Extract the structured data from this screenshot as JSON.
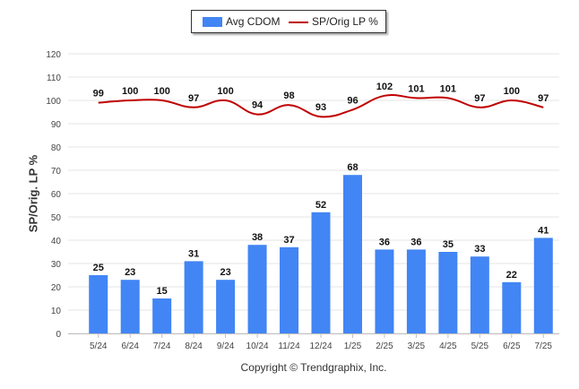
{
  "chart_data": {
    "type": "bar+line",
    "categories": [
      "5/24",
      "6/24",
      "7/24",
      "8/24",
      "9/24",
      "10/24",
      "11/24",
      "12/24",
      "1/25",
      "2/25",
      "3/25",
      "4/25",
      "5/25",
      "6/25",
      "7/25"
    ],
    "series": [
      {
        "name": "Avg CDOM",
        "type": "bar",
        "color": "#4285f4",
        "values": [
          25,
          23,
          15,
          31,
          23,
          38,
          37,
          52,
          68,
          36,
          36,
          35,
          33,
          22,
          41
        ]
      },
      {
        "name": "SP/Orig LP %",
        "type": "line",
        "color": "#c00000",
        "values": [
          99,
          100,
          100,
          97,
          100,
          94,
          98,
          93,
          96,
          102,
          101,
          101,
          97,
          100,
          97
        ]
      }
    ],
    "ylabel": "SP/Orig. LP %",
    "xlabel": "",
    "ylim": [
      0,
      120
    ],
    "yticks": [
      0,
      10,
      20,
      30,
      40,
      50,
      60,
      70,
      80,
      90,
      100,
      110,
      120
    ],
    "grid": true,
    "legend": "top-center"
  },
  "legend": {
    "bar_label": "Avg CDOM",
    "line_label": "SP/Orig LP %"
  },
  "footer": {
    "copyright": "Copyright © Trendgraphix, Inc."
  }
}
